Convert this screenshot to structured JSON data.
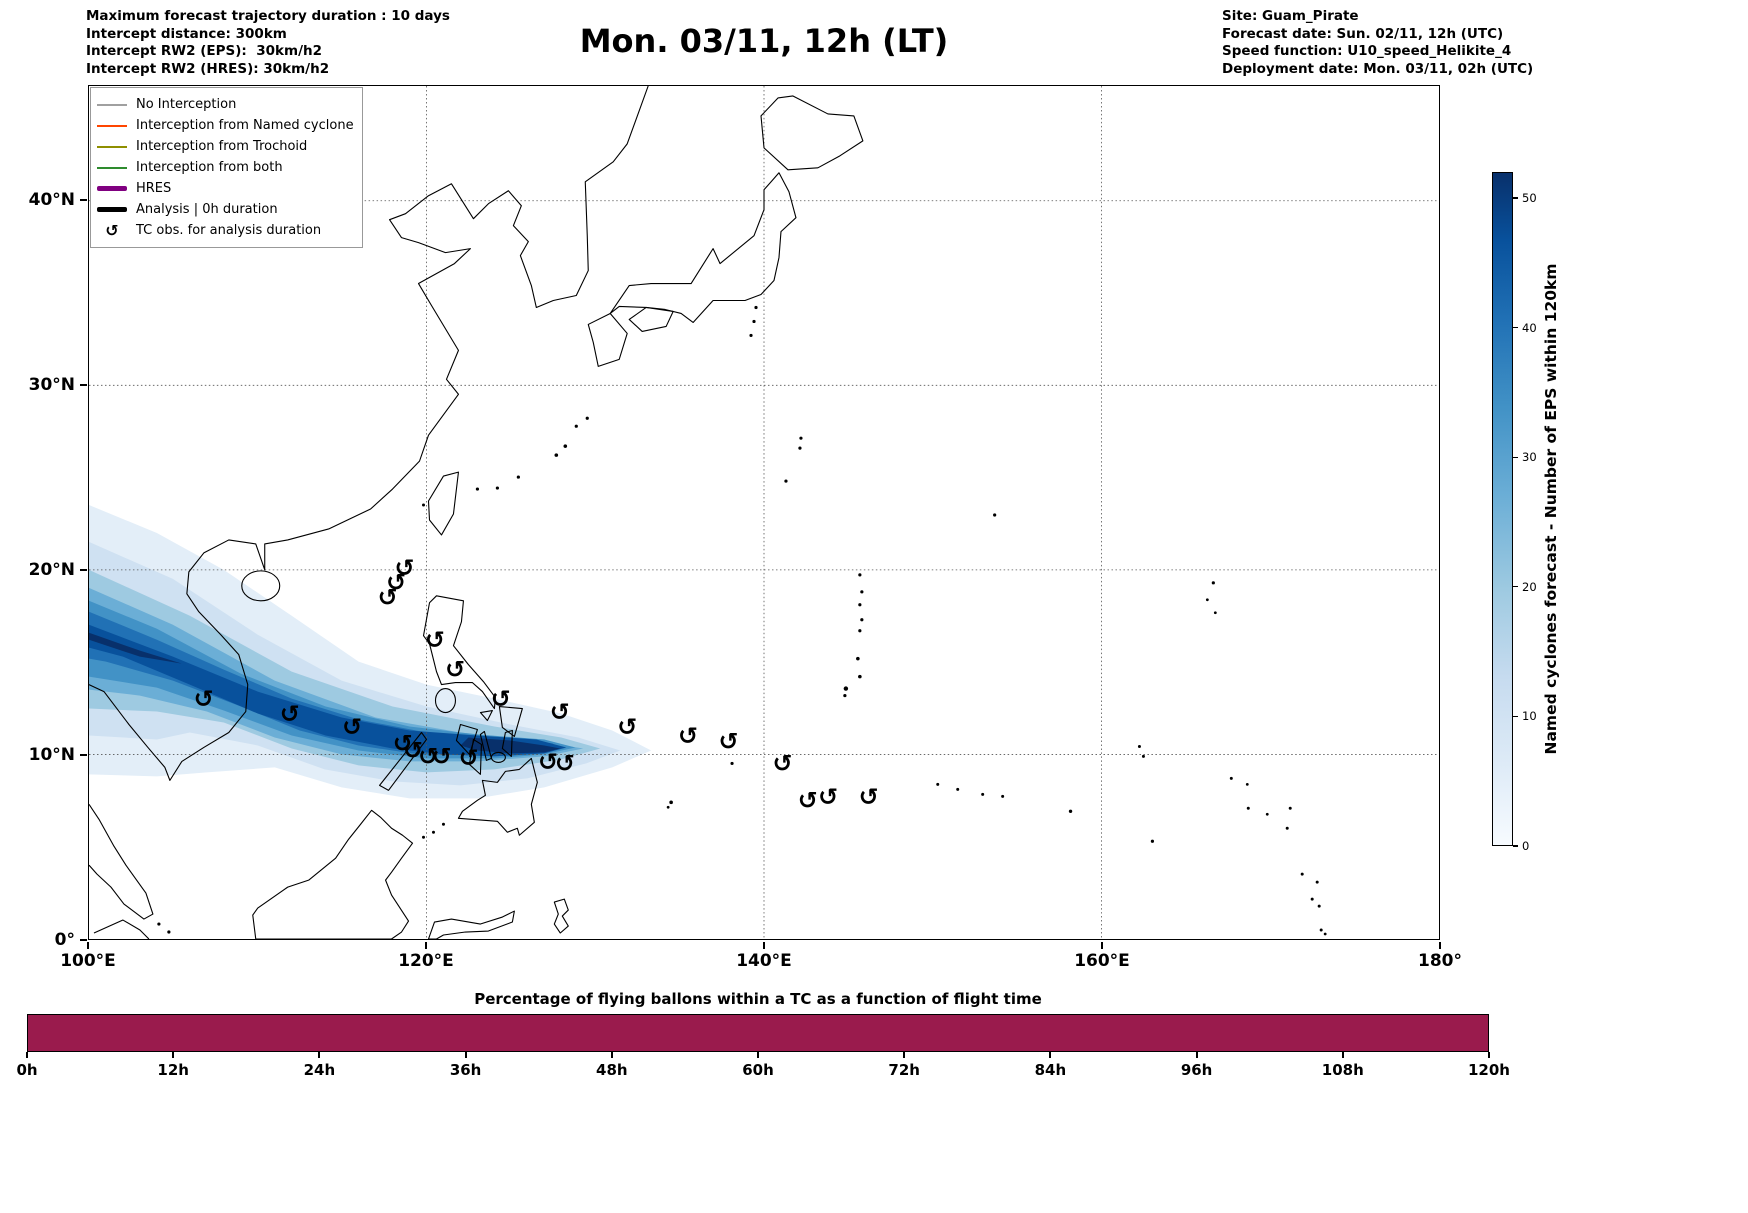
{
  "header": {
    "info_left": {
      "lines": [
        "Maximum forecast trajectory duration : 10 days",
        "Intercept distance: 300km",
        "Intercept RW2 (EPS):  30km/h2",
        "Intercept RW2 (HRES): 30km/h2"
      ]
    },
    "title": "Mon. 03/11, 12h (LT)",
    "info_right": {
      "lines": [
        "Site: Guam_Pirate",
        "Forecast date: Sun. 02/11, 12h (UTC)",
        "Speed function: U10_speed_Helikite_4",
        "Deployment date: Mon. 03/11, 02h (UTC)"
      ]
    }
  },
  "map": {
    "x_ticks": [
      "100°E",
      "120°E",
      "140°E",
      "160°E",
      "180°"
    ],
    "y_ticks": [
      "0°",
      "10°N",
      "20°N",
      "30°N",
      "40°N"
    ],
    "tc_symbol": "↺",
    "legend": {
      "items": [
        {
          "label": "No Interception",
          "color": "#a0a0a0",
          "style": "thin"
        },
        {
          "label": "Interception from Named cyclone",
          "color": "#ff4500",
          "style": "thin"
        },
        {
          "label": "Interception from Trochoid",
          "color": "#8f8f00",
          "style": "thin"
        },
        {
          "label": "Interception from both",
          "color": "#2e8b2e",
          "style": "thin"
        },
        {
          "label": "HRES",
          "color": "#800080",
          "style": "thick"
        },
        {
          "label": "Analysis | 0h duration",
          "color": "#000000",
          "style": "thick"
        },
        {
          "label": "TC obs. for analysis duration",
          "color": "#000000",
          "style": "symbol"
        }
      ]
    }
  },
  "colorbar": {
    "label": "Named cyclones forecast - Number of EPS within 120km",
    "ticks": [
      0,
      10,
      20,
      30,
      40,
      50
    ],
    "vmax": 52,
    "color_low": "#f7fbff",
    "color_high": "#08306b"
  },
  "bottom_chart": {
    "title": "Percentage of flying ballons within a TC as a function of flight time",
    "x_ticks": [
      "0h",
      "12h",
      "24h",
      "36h",
      "48h",
      "60h",
      "72h",
      "84h",
      "96h",
      "108h",
      "120h"
    ],
    "bar_color": "#9a1b4d",
    "value_percent": 100
  },
  "chart_data": [
    {
      "type": "heatmap",
      "title": "Mon. 03/11, 12h (LT)",
      "x_range_deg_east": [
        100,
        180
      ],
      "y_range_deg_north": [
        0,
        46
      ],
      "x_tick_labels": [
        "100°E",
        "120°E",
        "140°E",
        "160°E",
        "180°"
      ],
      "y_tick_labels": [
        "0°",
        "10°N",
        "20°N",
        "30°N",
        "40°N"
      ],
      "grid": true,
      "colorbar_label": "Named cyclones forecast - Number of EPS within 120km",
      "colorbar_ticks": [
        0,
        10,
        20,
        30,
        40,
        50
      ],
      "colorbar_range": [
        0,
        52
      ],
      "plume_centerline_lonlat": [
        [
          100,
          16.2
        ],
        [
          105,
          15.3
        ],
        [
          110,
          12.9
        ],
        [
          115,
          11.8
        ],
        [
          120,
          10.8
        ],
        [
          124,
          10.5
        ],
        [
          127,
          10.4
        ],
        [
          129,
          10.2
        ]
      ],
      "plume_peak_lonlat": [
        126,
        10.4
      ],
      "tc_obs_lonlat": [
        [
          106.8,
          13.0
        ],
        [
          111.9,
          12.2
        ],
        [
          115.6,
          11.5
        ],
        [
          118.6,
          10.6
        ],
        [
          119.2,
          10.2
        ],
        [
          120.1,
          9.9
        ],
        [
          120.9,
          9.9
        ],
        [
          122.5,
          9.8
        ],
        [
          127.2,
          9.6
        ],
        [
          128.2,
          9.5
        ],
        [
          127.9,
          12.3
        ],
        [
          131.9,
          11.5
        ],
        [
          135.5,
          11.0
        ],
        [
          137.9,
          10.7
        ],
        [
          141.1,
          9.5
        ],
        [
          142.6,
          7.5
        ],
        [
          143.8,
          7.7
        ],
        [
          146.2,
          7.7
        ],
        [
          124.4,
          13.0
        ],
        [
          121.7,
          14.6
        ],
        [
          120.5,
          16.2
        ],
        [
          118.7,
          20.1
        ],
        [
          118.2,
          19.3
        ],
        [
          117.7,
          18.5
        ]
      ]
    },
    {
      "type": "bar",
      "title": "Percentage of flying ballons within a TC as a function of flight time",
      "x_ticks": [
        "0h",
        "12h",
        "24h",
        "36h",
        "48h",
        "60h",
        "72h",
        "84h",
        "96h",
        "108h",
        "120h"
      ],
      "x_range_hours": [
        0,
        120
      ],
      "values": [
        100,
        100,
        100,
        100,
        100,
        100,
        100,
        100,
        100,
        100,
        100
      ],
      "ylim": [
        0,
        100
      ],
      "color": "#9a1b4d",
      "legend_position": "none"
    }
  ]
}
